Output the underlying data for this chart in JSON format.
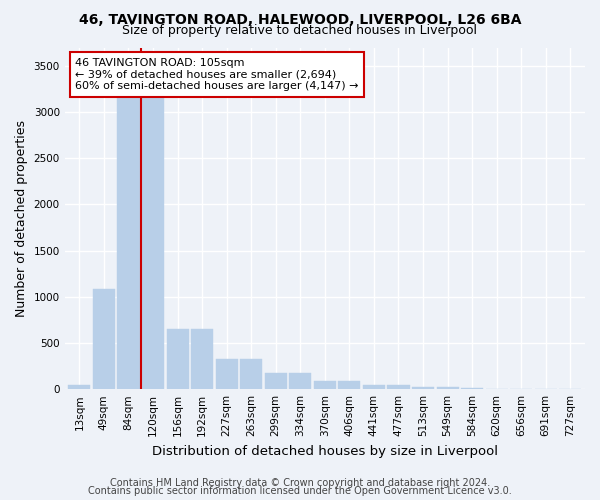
{
  "title_line1": "46, TAVINGTON ROAD, HALEWOOD, LIVERPOOL, L26 6BA",
  "title_line2": "Size of property relative to detached houses in Liverpool",
  "xlabel": "Distribution of detached houses by size in Liverpool",
  "ylabel": "Number of detached properties",
  "categories": [
    "13sqm",
    "49sqm",
    "84sqm",
    "120sqm",
    "156sqm",
    "192sqm",
    "227sqm",
    "263sqm",
    "299sqm",
    "334sqm",
    "370sqm",
    "406sqm",
    "441sqm",
    "477sqm",
    "513sqm",
    "549sqm",
    "584sqm",
    "620sqm",
    "656sqm",
    "691sqm",
    "727sqm"
  ],
  "bar_heights": [
    50,
    1080,
    3430,
    3430,
    650,
    650,
    330,
    330,
    175,
    175,
    90,
    90,
    50,
    50,
    20,
    20,
    10,
    5,
    3,
    2,
    1
  ],
  "bar_color": "#b8cfe8",
  "bar_edgecolor": "#b8cfe8",
  "vline_x_index": 2.5,
  "vline_color": "#cc0000",
  "annotation_text": "46 TAVINGTON ROAD: 105sqm\n← 39% of detached houses are smaller (2,694)\n60% of semi-detached houses are larger (4,147) →",
  "annotation_box_facecolor": "#ffffff",
  "annotation_box_edgecolor": "#cc0000",
  "ylim": [
    0,
    3700
  ],
  "yticks": [
    0,
    500,
    1000,
    1500,
    2000,
    2500,
    3000,
    3500
  ],
  "footer_line1": "Contains HM Land Registry data © Crown copyright and database right 2024.",
  "footer_line2": "Contains public sector information licensed under the Open Government Licence v3.0.",
  "bg_color": "#eef2f8",
  "plot_bg_color": "#eef2f8",
  "grid_color": "#ffffff",
  "title_fontsize": 10,
  "subtitle_fontsize": 9,
  "axis_label_fontsize": 9,
  "tick_fontsize": 7.5,
  "annotation_fontsize": 8,
  "footer_fontsize": 7
}
